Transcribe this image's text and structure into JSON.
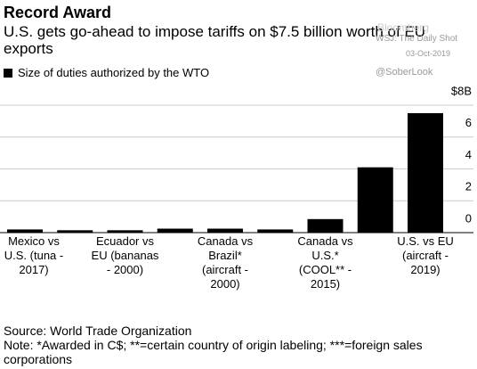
{
  "chart_data": {
    "type": "bar",
    "title": "Record Award",
    "subtitle": "U.S. gets go-ahead to impose tariffs on $7.5 billion worth of EU exports",
    "series": [
      {
        "name": "Size of duties authorized by the WTO",
        "color": "#000000",
        "values": [
          0.2,
          0.15,
          0.15,
          0.25,
          0.25,
          0.2,
          0.85,
          4.1,
          7.5
        ]
      }
    ],
    "categories": [
      "Mexico vs U.S. (tuna - 2017)",
      null,
      "Ecuador vs EU (bananas - 2000)",
      null,
      "Canada vs Brazil* (aircraft - 2000)",
      null,
      "Canada vs U.S.* (COOL** - 2015)",
      null,
      "U.S. vs EU (aircraft - 2019)"
    ],
    "ylim": [
      0,
      8
    ],
    "yticks": [
      0,
      2,
      4,
      6,
      {
        "value": 8,
        "label": "$8B"
      }
    ],
    "grid": true,
    "source": "Source: World Trade Organization",
    "note": "Note: *Awarded in C$; **=certain country of origin labeling; ***=foreign sales corporations",
    "watermark": {
      "brand": "Bloomberg",
      "credit": "WSJ: The Daily Shot",
      "date": "03-Oct-2019",
      "handle": "@SoberLook"
    }
  }
}
